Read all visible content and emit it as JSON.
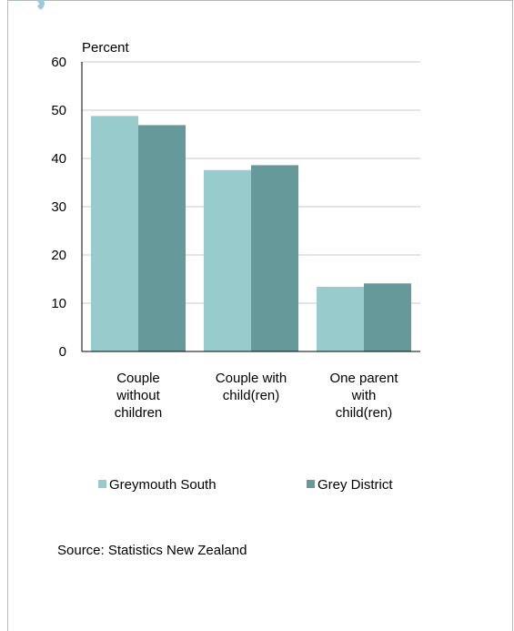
{
  "colors": {
    "series_1": "#98cccc",
    "series_2": "#669999",
    "grid": "#c8c8c8",
    "axis": "#000000"
  },
  "source_note": "Source: Statistics New Zealand",
  "chart_data": {
    "type": "bar",
    "title": "",
    "xlabel": "",
    "ylabel": "Percent",
    "ylim": [
      0,
      60
    ],
    "yticks": [
      0,
      10,
      20,
      30,
      40,
      50,
      60
    ],
    "grid": true,
    "legend_position": "bottom",
    "categories": [
      [
        "Couple",
        "without",
        "children"
      ],
      [
        "Couple with",
        "child(ren)"
      ],
      [
        "One parent",
        "with",
        "child(ren)"
      ]
    ],
    "series": [
      {
        "name": "Greymouth South",
        "values": [
          48.8,
          37.6,
          13.4
        ]
      },
      {
        "name": "Grey District",
        "values": [
          46.9,
          38.6,
          14.1
        ]
      }
    ]
  }
}
